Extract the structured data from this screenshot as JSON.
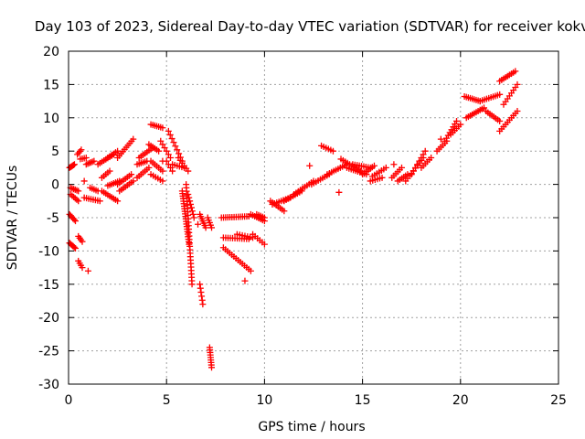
{
  "chart_data": {
    "type": "scatter",
    "title": "Day 103 of 2023, Sidereal Day-to-day VTEC variation (SDTVAR) for receiver kokv",
    "xlabel": "GPS time / hours",
    "ylabel": "SDTVAR / TECUs",
    "xlim": [
      0,
      25
    ],
    "ylim": [
      -30,
      20
    ],
    "xticks": [
      0,
      5,
      10,
      15,
      20,
      25
    ],
    "yticks": [
      20,
      15,
      10,
      5,
      0,
      -5,
      -10,
      -15,
      -20,
      -25,
      -30
    ],
    "grid": true,
    "marker": "+",
    "color": "#ff0000",
    "segments": [
      {
        "x0": 0.05,
        "x1": 0.3,
        "y0": 2.5,
        "y1": 3.0,
        "n": 6
      },
      {
        "x0": 0.05,
        "x1": 0.35,
        "y0": -4.5,
        "y1": -5.5,
        "n": 6
      },
      {
        "x0": 0.05,
        "x1": 0.35,
        "y0": -8.8,
        "y1": -9.6,
        "n": 6
      },
      {
        "x0": 0.1,
        "x1": 0.5,
        "y0": -0.5,
        "y1": -1.0,
        "n": 6
      },
      {
        "x0": 0.1,
        "x1": 0.5,
        "y0": -1.5,
        "y1": -2.5,
        "n": 6
      },
      {
        "x0": 0.45,
        "x1": 0.65,
        "y0": 4.5,
        "y1": 5.2,
        "n": 4
      },
      {
        "x0": 0.5,
        "x1": 0.7,
        "y0": -7.8,
        "y1": -8.6,
        "n": 4
      },
      {
        "x0": 0.5,
        "x1": 0.7,
        "y0": -11.5,
        "y1": -12.5,
        "n": 4
      },
      {
        "x0": 0.6,
        "x1": 0.9,
        "y0": 3.8,
        "y1": 4.0,
        "n": 4
      },
      {
        "x0": 0.9,
        "x1": 1.3,
        "y0": 3.0,
        "y1": 3.5,
        "n": 6
      },
      {
        "x0": 0.8,
        "x1": 1.6,
        "y0": -2.0,
        "y1": -2.5,
        "n": 8
      },
      {
        "x0": 1.1,
        "x1": 1.5,
        "y0": -0.5,
        "y1": -1.0,
        "n": 5
      },
      {
        "x0": 1.5,
        "x1": 2.3,
        "y0": 3.0,
        "y1": 4.5,
        "n": 9
      },
      {
        "x0": 1.7,
        "x1": 2.1,
        "y0": 1.0,
        "y1": 2.0,
        "n": 5
      },
      {
        "x0": 1.7,
        "x1": 2.5,
        "y0": -1.0,
        "y1": -2.5,
        "n": 9
      },
      {
        "x0": 2.0,
        "x1": 2.6,
        "y0": -0.2,
        "y1": 0.5,
        "n": 7
      },
      {
        "x0": 2.0,
        "x1": 2.5,
        "y0": 4.0,
        "y1": 5.0,
        "n": 6
      },
      {
        "x0": 2.5,
        "x1": 3.3,
        "y0": 4.0,
        "y1": 6.8,
        "n": 10
      },
      {
        "x0": 2.5,
        "x1": 3.2,
        "y0": 0.0,
        "y1": 1.5,
        "n": 8
      },
      {
        "x0": 2.6,
        "x1": 3.3,
        "y0": -1.0,
        "y1": 0.5,
        "n": 8
      },
      {
        "x0": 3.6,
        "x1": 4.3,
        "y0": 4.0,
        "y1": 5.5,
        "n": 8
      },
      {
        "x0": 3.5,
        "x1": 4.1,
        "y0": 1.0,
        "y1": 2.5,
        "n": 7
      },
      {
        "x0": 3.5,
        "x1": 4.0,
        "y0": 3.0,
        "y1": 3.5,
        "n": 6
      },
      {
        "x0": 4.2,
        "x1": 4.8,
        "y0": 9.0,
        "y1": 8.5,
        "n": 7
      },
      {
        "x0": 4.1,
        "x1": 4.6,
        "y0": 6.0,
        "y1": 5.0,
        "n": 6
      },
      {
        "x0": 4.2,
        "x1": 4.8,
        "y0": 3.5,
        "y1": 2.0,
        "n": 7
      },
      {
        "x0": 4.2,
        "x1": 4.8,
        "y0": 1.5,
        "y1": 0.5,
        "n": 6
      },
      {
        "x0": 4.7,
        "x1": 5.2,
        "y0": 6.5,
        "y1": 4.0,
        "n": 6
      },
      {
        "x0": 5.0,
        "x1": 5.3,
        "y0": 3.5,
        "y1": 2.0,
        "n": 4
      },
      {
        "x0": 5.1,
        "x1": 5.8,
        "y0": 8.0,
        "y1": 3.5,
        "n": 9
      },
      {
        "x0": 5.3,
        "x1": 5.9,
        "y0": 3.0,
        "y1": 2.5,
        "n": 6
      },
      {
        "x0": 5.6,
        "x1": 6.1,
        "y0": 4.0,
        "y1": 2.0,
        "n": 6
      },
      {
        "x0": 5.8,
        "x1": 6.15,
        "y0": -1.0,
        "y1": -9.0,
        "n": 22
      },
      {
        "x0": 6.0,
        "x1": 6.3,
        "y0": 0.0,
        "y1": -15.0,
        "n": 30
      },
      {
        "x0": 6.1,
        "x1": 6.4,
        "y0": -1.5,
        "y1": -5.0,
        "n": 8
      },
      {
        "x0": 6.7,
        "x1": 6.85,
        "y0": -15.0,
        "y1": -18.0,
        "n": 6
      },
      {
        "x0": 6.7,
        "x1": 7.0,
        "y0": -4.5,
        "y1": -6.5,
        "n": 7
      },
      {
        "x0": 7.1,
        "x1": 7.3,
        "y0": -5.0,
        "y1": -6.5,
        "n": 5
      },
      {
        "x0": 7.2,
        "x1": 7.3,
        "y0": -24.5,
        "y1": -27.5,
        "n": 9
      },
      {
        "x0": 7.8,
        "x1": 9.2,
        "y0": -5.0,
        "y1": -4.8,
        "n": 14
      },
      {
        "x0": 7.9,
        "x1": 9.2,
        "y0": -8.0,
        "y1": -8.2,
        "n": 12
      },
      {
        "x0": 7.9,
        "x1": 9.3,
        "y0": -9.5,
        "y1": -13.0,
        "n": 14
      },
      {
        "x0": 8.6,
        "x1": 9.4,
        "y0": -7.5,
        "y1": -8.0,
        "n": 7
      },
      {
        "x0": 9.3,
        "x1": 10.0,
        "y0": -4.5,
        "y1": -5.5,
        "n": 8
      },
      {
        "x0": 9.4,
        "x1": 10.0,
        "y0": -7.5,
        "y1": -9.0,
        "n": 6
      },
      {
        "x0": 9.6,
        "x1": 10.0,
        "y0": -4.5,
        "y1": -5.0,
        "n": 5
      },
      {
        "x0": 10.3,
        "x1": 11.0,
        "y0": -2.5,
        "y1": -4.0,
        "n": 8
      },
      {
        "x0": 10.4,
        "x1": 11.3,
        "y0": -3.0,
        "y1": -2.0,
        "n": 9
      },
      {
        "x0": 11.0,
        "x1": 11.9,
        "y0": -2.5,
        "y1": -1.0,
        "n": 9
      },
      {
        "x0": 11.5,
        "x1": 12.5,
        "y0": -1.5,
        "y1": 0.5,
        "n": 10
      },
      {
        "x0": 12.4,
        "x1": 13.3,
        "y0": 0.0,
        "y1": 1.5,
        "n": 9
      },
      {
        "x0": 12.9,
        "x1": 13.5,
        "y0": 5.8,
        "y1": 5.0,
        "n": 6
      },
      {
        "x0": 13.2,
        "x1": 14.2,
        "y0": 1.5,
        "y1": 3.0,
        "n": 10
      },
      {
        "x0": 13.9,
        "x1": 14.9,
        "y0": 3.8,
        "y1": 2.0,
        "n": 10
      },
      {
        "x0": 14.2,
        "x1": 15.2,
        "y0": 2.5,
        "y1": 1.5,
        "n": 10
      },
      {
        "x0": 14.5,
        "x1": 15.4,
        "y0": 3.0,
        "y1": 2.5,
        "n": 9
      },
      {
        "x0": 15.0,
        "x1": 15.6,
        "y0": 1.5,
        "y1": 2.8,
        "n": 7
      },
      {
        "x0": 15.4,
        "x1": 16.0,
        "y0": 0.5,
        "y1": 1.0,
        "n": 6
      },
      {
        "x0": 15.5,
        "x1": 16.2,
        "y0": 1.2,
        "y1": 2.5,
        "n": 7
      },
      {
        "x0": 16.5,
        "x1": 17.0,
        "y0": 1.0,
        "y1": 2.5,
        "n": 6
      },
      {
        "x0": 16.8,
        "x1": 17.3,
        "y0": 0.5,
        "y1": 1.5,
        "n": 6
      },
      {
        "x0": 17.2,
        "x1": 18.1,
        "y0": 0.5,
        "y1": 4.0,
        "n": 10
      },
      {
        "x0": 17.5,
        "x1": 18.2,
        "y0": 1.5,
        "y1": 5.0,
        "n": 8
      },
      {
        "x0": 18.0,
        "x1": 18.5,
        "y0": 2.5,
        "y1": 4.0,
        "n": 6
      },
      {
        "x0": 18.8,
        "x1": 19.3,
        "y0": 5.0,
        "y1": 6.5,
        "n": 6
      },
      {
        "x0": 19.2,
        "x1": 19.8,
        "y0": 6.5,
        "y1": 9.5,
        "n": 8
      },
      {
        "x0": 19.5,
        "x1": 20.0,
        "y0": 7.5,
        "y1": 9.0,
        "n": 6
      },
      {
        "x0": 20.2,
        "x1": 21.0,
        "y0": 13.2,
        "y1": 12.5,
        "n": 9
      },
      {
        "x0": 20.3,
        "x1": 21.2,
        "y0": 10.0,
        "y1": 11.5,
        "n": 10
      },
      {
        "x0": 21.0,
        "x1": 22.0,
        "y0": 12.5,
        "y1": 13.5,
        "n": 10
      },
      {
        "x0": 21.3,
        "x1": 22.0,
        "y0": 11.0,
        "y1": 9.5,
        "n": 8
      },
      {
        "x0": 22.0,
        "x1": 22.8,
        "y0": 15.5,
        "y1": 17.0,
        "n": 9
      },
      {
        "x0": 22.2,
        "x1": 22.9,
        "y0": 12.0,
        "y1": 15.0,
        "n": 8
      },
      {
        "x0": 22.0,
        "x1": 22.9,
        "y0": 8.0,
        "y1": 11.0,
        "n": 10
      }
    ],
    "points": [
      {
        "x": 1.0,
        "y": -13.0
      },
      {
        "x": 0.8,
        "y": 0.5
      },
      {
        "x": 4.8,
        "y": 3.5
      },
      {
        "x": 12.3,
        "y": 2.8
      },
      {
        "x": 13.8,
        "y": -1.2
      },
      {
        "x": 16.6,
        "y": 3.0
      },
      {
        "x": 19.0,
        "y": 6.8
      },
      {
        "x": 9.0,
        "y": -14.5
      },
      {
        "x": 6.6,
        "y": -6.0
      }
    ]
  }
}
